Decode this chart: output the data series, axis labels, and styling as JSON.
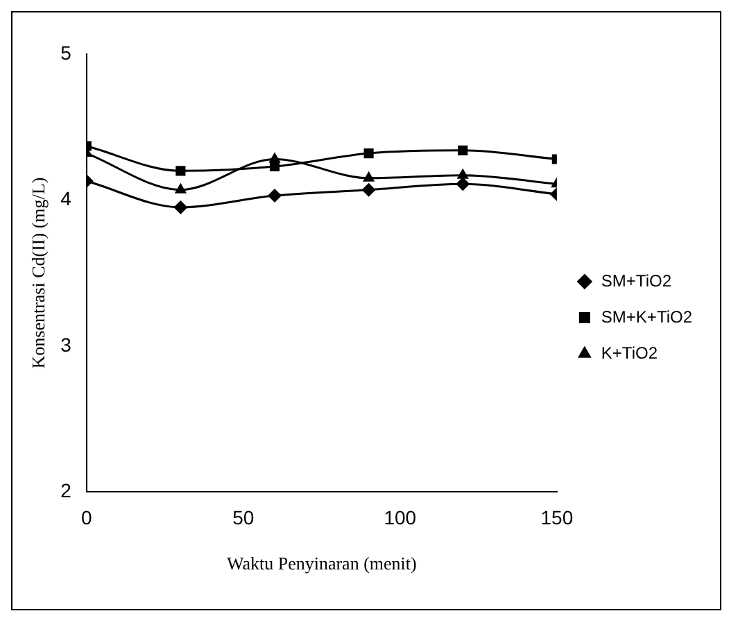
{
  "chart_data": {
    "type": "line",
    "xlabel": "Waktu Penyinaran (menit)",
    "ylabel": "Konsentrasi Cd(II) (mg/L)",
    "x": [
      0,
      30,
      60,
      90,
      120,
      150
    ],
    "series": [
      {
        "name": "SM+TiO2",
        "color": "#000000",
        "marker": "diamond",
        "values": [
          4.13,
          3.95,
          4.03,
          4.07,
          4.11,
          4.04
        ]
      },
      {
        "name": "SM+K+TiO2",
        "color": "#000000",
        "marker": "square",
        "values": [
          4.37,
          4.2,
          4.23,
          4.32,
          4.34,
          4.28
        ]
      },
      {
        "name": "K+TiO2",
        "color": "#000000",
        "marker": "triangle",
        "values": [
          4.32,
          4.07,
          4.28,
          4.15,
          4.17,
          4.11
        ]
      }
    ],
    "xlim": [
      0,
      150
    ],
    "xticks": [
      0,
      50,
      100,
      150
    ],
    "ylim": [
      2,
      5
    ],
    "yticks": [
      2,
      3,
      4,
      5
    ],
    "grid": false,
    "legend": "right",
    "line_style": "solid"
  }
}
